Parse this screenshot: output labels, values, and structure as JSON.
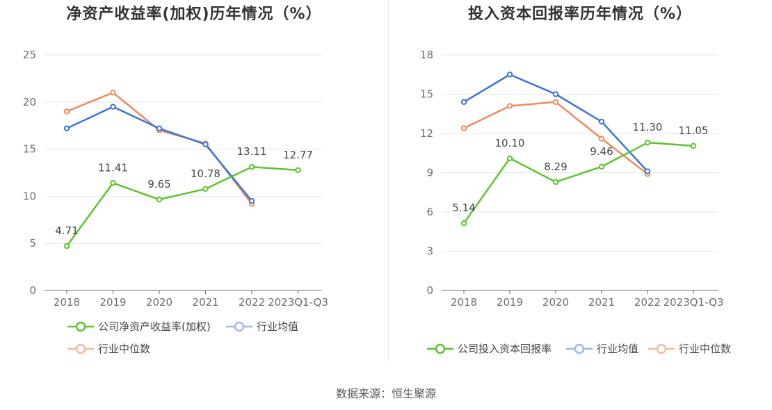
{
  "colors": {
    "company": "#5dc52c",
    "industry_avg": "#3a73e0",
    "industry_median": "#f18a5a"
  },
  "left_chart": {
    "title": "净资产收益率(加权)历年情况（%）",
    "legend": [
      "公司净资产收益率(加权)",
      "行业均值",
      "行业中位数"
    ]
  },
  "right_chart": {
    "title": "投入资本回报率历年情况（%）",
    "legend": [
      "公司投入资本回报率",
      "行业均值",
      "行业中位数"
    ]
  },
  "source": "数据来源：恒生聚源",
  "chart_data": [
    {
      "type": "line",
      "title": "净资产收益率(加权)历年情况（%）",
      "categories": [
        "2018",
        "2019",
        "2020",
        "2021",
        "2022",
        "2023Q1-Q3"
      ],
      "ylim": [
        0,
        25
      ],
      "yticks": [
        0,
        5,
        10,
        15,
        20,
        25
      ],
      "grid": true,
      "legend_position": "bottom",
      "series": [
        {
          "name": "公司净资产收益率(加权)",
          "color": "#5dc52c",
          "values": [
            4.71,
            11.41,
            9.65,
            10.78,
            13.11,
            12.77
          ],
          "labels": [
            "4.71",
            "11.41",
            "9.65",
            "10.78",
            "13.11",
            "12.77"
          ]
        },
        {
          "name": "行业均值",
          "color": "#3a73e0",
          "values": [
            17.2,
            19.5,
            17.2,
            15.5,
            9.5,
            null
          ]
        },
        {
          "name": "行业中位数",
          "color": "#f18a5a",
          "values": [
            19.0,
            21.0,
            17.0,
            15.6,
            9.2,
            null
          ]
        }
      ]
    },
    {
      "type": "line",
      "title": "投入资本回报率历年情况（%）",
      "categories": [
        "2018",
        "2019",
        "2020",
        "2021",
        "2022",
        "2023Q1-Q3"
      ],
      "ylim": [
        0,
        18
      ],
      "yticks": [
        0,
        3,
        6,
        9,
        12,
        15,
        18
      ],
      "grid": true,
      "legend_position": "bottom",
      "series": [
        {
          "name": "公司投入资本回报率",
          "color": "#5dc52c",
          "values": [
            5.14,
            10.1,
            8.29,
            9.46,
            11.3,
            11.05
          ],
          "labels": [
            "5.14",
            "10.10",
            "8.29",
            "9.46",
            "11.30",
            "11.05"
          ]
        },
        {
          "name": "行业均值",
          "color": "#3a73e0",
          "values": [
            14.4,
            16.5,
            15.0,
            12.9,
            9.1,
            null
          ]
        },
        {
          "name": "行业中位数",
          "color": "#f18a5a",
          "values": [
            12.4,
            14.1,
            14.4,
            11.6,
            8.9,
            null
          ]
        }
      ]
    }
  ]
}
